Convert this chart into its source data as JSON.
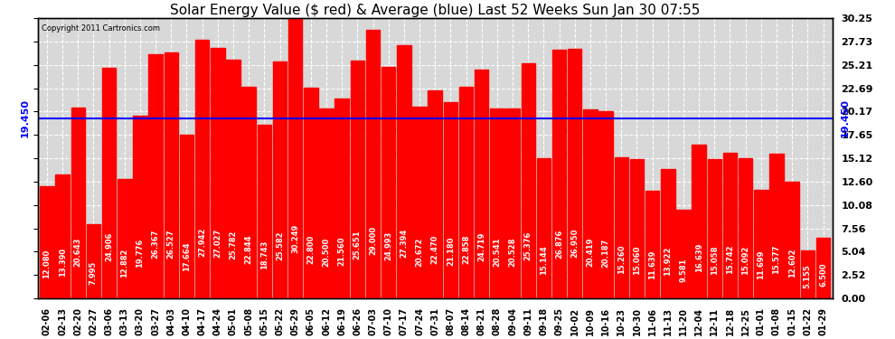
{
  "title": "Solar Energy Value ($ red) & Average (blue) Last 52 Weeks Sun Jan 30 07:55",
  "copyright": "Copyright 2011 Cartronics.com",
  "average_line": 19.45,
  "average_label": "19.450",
  "bar_color": "#FF0000",
  "average_line_color": "#0000FF",
  "background_color": "#D8D8D8",
  "yticks": [
    0.0,
    2.52,
    5.04,
    7.56,
    10.08,
    12.6,
    15.12,
    17.65,
    20.17,
    22.69,
    25.21,
    27.73,
    30.25
  ],
  "ylim": [
    0,
    30.25
  ],
  "categories": [
    "02-06",
    "02-13",
    "02-20",
    "02-27",
    "03-06",
    "03-13",
    "03-20",
    "03-27",
    "04-03",
    "04-10",
    "04-17",
    "04-24",
    "05-01",
    "05-08",
    "05-15",
    "05-22",
    "05-29",
    "06-05",
    "06-12",
    "06-19",
    "06-26",
    "07-03",
    "07-10",
    "07-17",
    "07-24",
    "07-31",
    "08-07",
    "08-14",
    "08-21",
    "08-28",
    "09-04",
    "09-11",
    "09-18",
    "09-25",
    "10-02",
    "10-09",
    "10-16",
    "10-23",
    "10-30",
    "11-06",
    "11-13",
    "11-20",
    "12-04",
    "12-11",
    "12-18",
    "12-25",
    "01-01",
    "01-08",
    "01-15",
    "01-22",
    "01-29"
  ],
  "values": [
    12.08,
    13.39,
    20.643,
    7.995,
    24.906,
    12.882,
    19.776,
    26.367,
    26.527,
    17.664,
    27.942,
    27.027,
    25.782,
    22.844,
    18.743,
    25.582,
    30.249,
    22.8,
    20.5,
    21.56,
    25.651,
    29.0,
    24.993,
    27.394,
    20.672,
    22.47,
    21.18,
    22.858,
    24.719,
    20.541,
    20.528,
    25.376,
    15.144,
    26.876,
    26.95,
    20.419,
    20.187,
    15.26,
    15.06,
    11.639,
    13.922,
    9.581,
    16.639,
    15.058,
    15.742,
    15.092,
    11.699,
    15.577,
    12.602,
    5.155,
    6.5
  ],
  "value_labels": [
    "12.080",
    "13.390",
    "20.643",
    "7.995",
    "24.906",
    "12.882",
    "19.776",
    "26.367",
    "26.527",
    "17.664",
    "27.942",
    "27.027",
    "25.782",
    "22.844",
    "18.743",
    "25.582",
    "30.249",
    "22.800",
    "20.500",
    "21.560",
    "25.651",
    "29.000",
    "24.993",
    "27.394",
    "20.672",
    "22.470",
    "21.180",
    "22.858",
    "24.719",
    "20.541",
    "20.528",
    "25.376",
    "15.144",
    "26.876",
    "26.950",
    "20.419",
    "20.187",
    "15.260",
    "15.060",
    "11.639",
    "13.922",
    "9.581",
    "16.639",
    "15.058",
    "15.742",
    "15.092",
    "11.699",
    "15.577",
    "12.602",
    "5.155",
    "6.500"
  ],
  "grid_color": "#FFFFFF",
  "title_fontsize": 11,
  "tick_fontsize": 8,
  "bar_label_fontsize": 6,
  "copyright_fontsize": 6
}
